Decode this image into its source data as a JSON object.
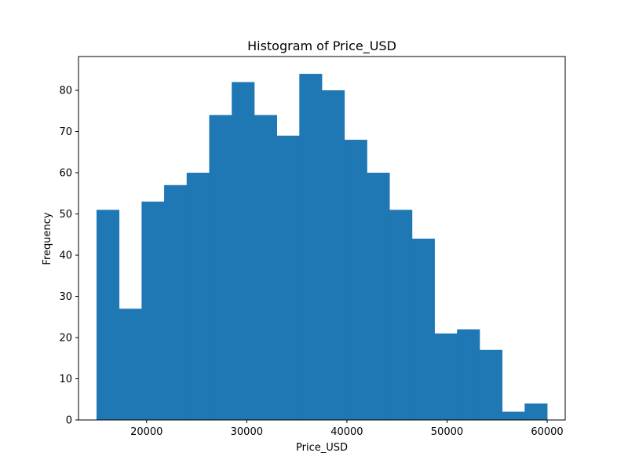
{
  "chart_data": {
    "type": "histogram",
    "title": "Histogram of Price_USD",
    "xlabel": "Price_USD",
    "ylabel": "Frequency",
    "bar_color": "#1f77b4",
    "bin_edges": [
      15000,
      17250,
      19500,
      21750,
      24000,
      26250,
      28500,
      30750,
      33000,
      35250,
      37500,
      39750,
      42000,
      44250,
      46500,
      48750,
      51000,
      53250,
      55500,
      57750,
      60000
    ],
    "values": [
      51,
      27,
      53,
      57,
      60,
      74,
      82,
      74,
      69,
      84,
      80,
      68,
      60,
      51,
      44,
      21,
      22,
      17,
      2,
      4
    ],
    "xlim": [
      13200,
      61800
    ],
    "ylim": [
      0,
      88.2
    ],
    "xticks": [
      20000,
      30000,
      40000,
      50000,
      60000
    ],
    "xtick_labels": [
      "20000",
      "30000",
      "40000",
      "50000",
      "60000"
    ],
    "yticks": [
      0,
      10,
      20,
      30,
      40,
      50,
      60,
      70,
      80
    ],
    "ytick_labels": [
      "0",
      "10",
      "20",
      "30",
      "40",
      "50",
      "60",
      "70",
      "80"
    ],
    "grid": false,
    "legend": false
  }
}
